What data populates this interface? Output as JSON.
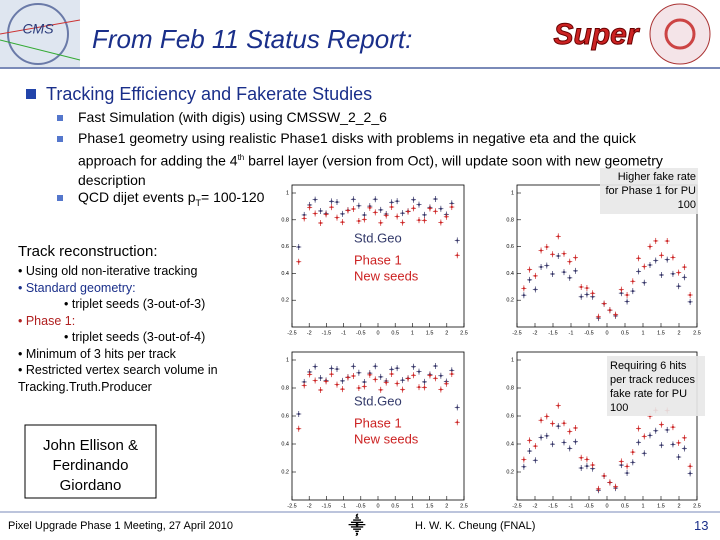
{
  "header": {
    "title": "From Feb 11 Status Report:",
    "logo_left": "CMS",
    "logo_right": "Super"
  },
  "section": {
    "heading": "Tracking Efficiency and Fakerate Studies",
    "bullets": [
      [
        "Fast Simulation (with digis) using CMSSW_2_2_6"
      ],
      [
        "Phase1 geometry using realistic Phase1 disks with problems in negative eta and the quick approach for adding the 4",
        "th",
        " barrel layer (version from Oct), will update soon with new geometry description"
      ],
      [
        "QCD dijet events p",
        "T",
        "= 100-120"
      ]
    ]
  },
  "reco": {
    "heading": "Track reconstruction:",
    "lines": [
      "• Using old non-iterative tracking",
      "• Standard geometry:",
      "• triplet seeds (3-out-of-3)",
      "• Phase 1:",
      "• triplet seeds (3-out-of-4)",
      "• Minimum of 3 hits per track",
      "• Restricted vertex search volume in Tracking.Truth.Producer"
    ]
  },
  "authors": "John Ellison & Ferdinando Giordano",
  "callouts": [
    "Higher fake rate for Phase 1 for PU 100",
    "Requiring 6 hits per track reduces fake rate for PU 100"
  ],
  "plots": {
    "legend": [
      "Std.Geo",
      "Phase 1",
      "New seeds"
    ],
    "xticks": [
      -2.5,
      -2,
      -1.5,
      -1,
      -0.5,
      0,
      0.5,
      1,
      1.5,
      2,
      2.5
    ],
    "yticks": [
      0.2,
      0.4,
      0.6,
      0.8,
      1
    ]
  },
  "footer": {
    "meeting": "Pixel Upgrade Phase 1 Meeting, 27 April 2010",
    "author": "H. W. K. Cheung (FNAL)",
    "page": "13"
  }
}
